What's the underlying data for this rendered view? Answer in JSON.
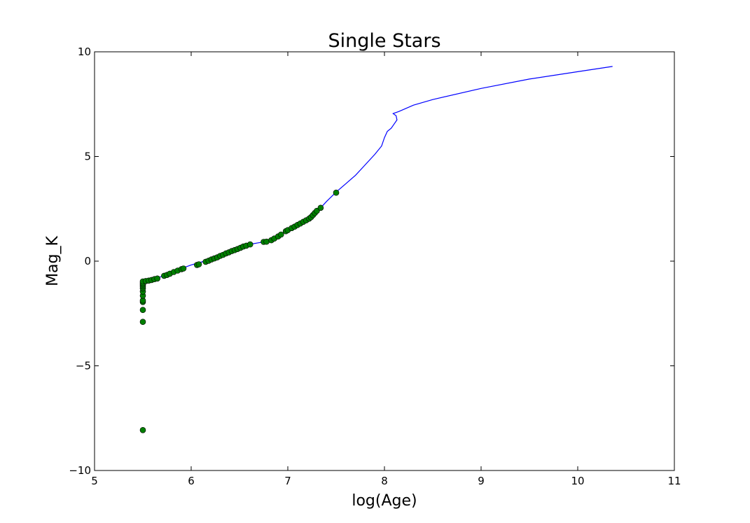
{
  "chart_data": {
    "type": "line",
    "title": "Single Stars",
    "xlabel": "log(Age)",
    "ylabel": "Mag_K",
    "xlim": [
      5,
      11
    ],
    "ylim": [
      -10,
      10
    ],
    "xticks": [
      5,
      6,
      7,
      8,
      9,
      10,
      11
    ],
    "yticks": [
      -10,
      -5,
      0,
      5,
      10
    ],
    "grid": false,
    "series": [
      {
        "kind": "line",
        "color": "#0000ff",
        "points": [
          [
            5.5,
            -1.0
          ],
          [
            5.6,
            -0.9
          ],
          [
            5.7,
            -0.72
          ],
          [
            5.8,
            -0.55
          ],
          [
            5.9,
            -0.35
          ],
          [
            6.0,
            -0.18
          ],
          [
            6.1,
            -0.05
          ],
          [
            6.2,
            0.08
          ],
          [
            6.3,
            0.25
          ],
          [
            6.4,
            0.43
          ],
          [
            6.5,
            0.62
          ],
          [
            6.6,
            0.8
          ],
          [
            6.7,
            0.88
          ],
          [
            6.8,
            0.95
          ],
          [
            6.9,
            1.2
          ],
          [
            7.0,
            1.5
          ],
          [
            7.1,
            1.75
          ],
          [
            7.2,
            2.0
          ],
          [
            7.3,
            2.35
          ],
          [
            7.35,
            2.6
          ],
          [
            7.4,
            2.85
          ],
          [
            7.5,
            3.3
          ],
          [
            7.6,
            3.7
          ],
          [
            7.7,
            4.1
          ],
          [
            7.8,
            4.6
          ],
          [
            7.9,
            5.1
          ],
          [
            7.97,
            5.5
          ],
          [
            8.0,
            5.9
          ],
          [
            8.03,
            6.2
          ],
          [
            8.07,
            6.35
          ],
          [
            8.1,
            6.55
          ],
          [
            8.13,
            6.75
          ],
          [
            8.12,
            6.95
          ],
          [
            8.09,
            7.05
          ],
          [
            8.15,
            7.15
          ],
          [
            8.3,
            7.45
          ],
          [
            8.5,
            7.72
          ],
          [
            9.0,
            8.25
          ],
          [
            9.5,
            8.7
          ],
          [
            10.0,
            9.05
          ],
          [
            10.36,
            9.3
          ]
        ]
      },
      {
        "kind": "scatter",
        "color": "#007f00",
        "points": [
          [
            5.5,
            -8.07
          ],
          [
            5.5,
            -2.9
          ],
          [
            5.5,
            -2.33
          ],
          [
            5.5,
            -1.95
          ],
          [
            5.5,
            -1.88
          ],
          [
            5.5,
            -1.65
          ],
          [
            5.5,
            -1.45
          ],
          [
            5.5,
            -1.3
          ],
          [
            5.5,
            -1.2
          ],
          [
            5.5,
            -1.12
          ],
          [
            5.5,
            -1.05
          ],
          [
            5.5,
            -0.97
          ],
          [
            5.53,
            -0.95
          ],
          [
            5.56,
            -0.93
          ],
          [
            5.59,
            -0.9
          ],
          [
            5.62,
            -0.86
          ],
          [
            5.65,
            -0.83
          ],
          [
            5.72,
            -0.7
          ],
          [
            5.75,
            -0.66
          ],
          [
            5.78,
            -0.6
          ],
          [
            5.82,
            -0.52
          ],
          [
            5.86,
            -0.45
          ],
          [
            5.9,
            -0.38
          ],
          [
            5.92,
            -0.35
          ],
          [
            6.06,
            -0.18
          ],
          [
            6.08,
            -0.15
          ],
          [
            6.15,
            -0.03
          ],
          [
            6.18,
            0.02
          ],
          [
            6.21,
            0.08
          ],
          [
            6.24,
            0.13
          ],
          [
            6.27,
            0.18
          ],
          [
            6.3,
            0.25
          ],
          [
            6.33,
            0.3
          ],
          [
            6.36,
            0.37
          ],
          [
            6.39,
            0.42
          ],
          [
            6.42,
            0.48
          ],
          [
            6.45,
            0.53
          ],
          [
            6.48,
            0.58
          ],
          [
            6.51,
            0.64
          ],
          [
            6.54,
            0.7
          ],
          [
            6.57,
            0.74
          ],
          [
            6.61,
            0.8
          ],
          [
            6.75,
            0.92
          ],
          [
            6.78,
            0.93
          ],
          [
            6.83,
            1.0
          ],
          [
            6.86,
            1.08
          ],
          [
            6.9,
            1.18
          ],
          [
            6.93,
            1.27
          ],
          [
            6.98,
            1.43
          ],
          [
            7.0,
            1.48
          ],
          [
            7.04,
            1.58
          ],
          [
            7.07,
            1.65
          ],
          [
            7.1,
            1.73
          ],
          [
            7.13,
            1.8
          ],
          [
            7.16,
            1.88
          ],
          [
            7.19,
            1.95
          ],
          [
            7.22,
            2.03
          ],
          [
            7.24,
            2.1
          ],
          [
            7.26,
            2.2
          ],
          [
            7.28,
            2.3
          ],
          [
            7.3,
            2.4
          ],
          [
            7.34,
            2.55
          ],
          [
            7.5,
            3.27
          ]
        ]
      }
    ]
  }
}
